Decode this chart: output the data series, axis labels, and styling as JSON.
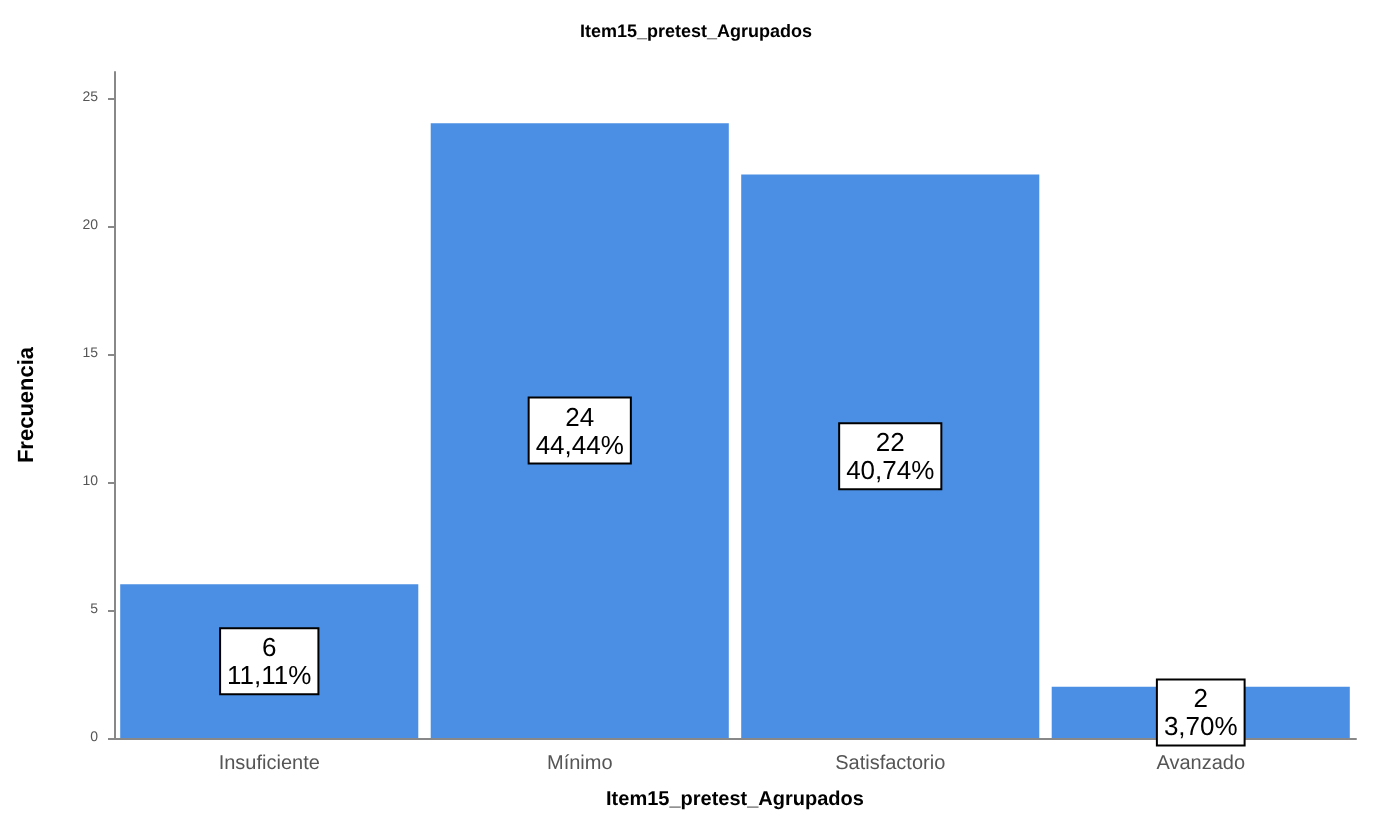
{
  "chart_data": {
    "type": "bar",
    "title": "Item15_pretest_Agrupados",
    "xlabel": "Item15_pretest_Agrupados",
    "ylabel": "Frecuencia",
    "categories": [
      "Insuficiente",
      "Mínimo",
      "Satisfactorio",
      "Avanzado"
    ],
    "values": [
      6,
      24,
      22,
      2
    ],
    "color": "#4a8fe3",
    "value_labels": [
      "6\n11,11%",
      "24\n44,44%",
      "22\n40,74%",
      "2\n3,70%"
    ],
    "ylim": [
      0,
      26
    ],
    "yticks": [
      0,
      5,
      10,
      15,
      20,
      25
    ],
    "grid": false
  }
}
